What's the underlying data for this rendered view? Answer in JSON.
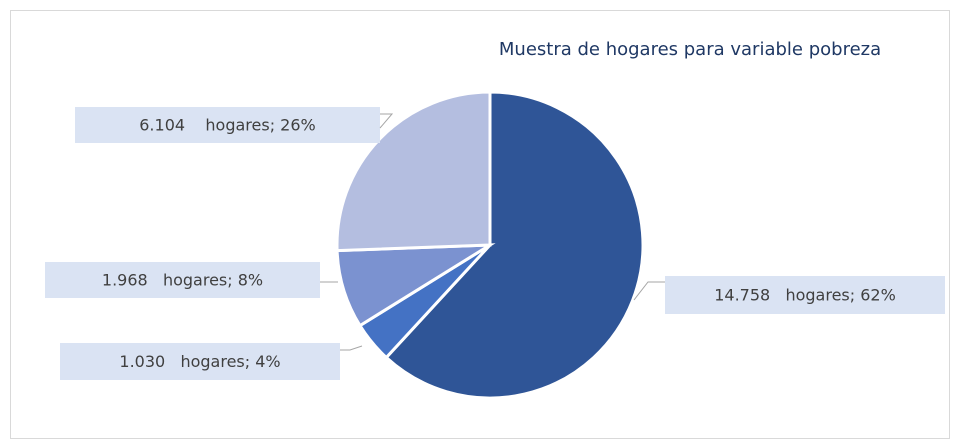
{
  "chart_data": {
    "type": "pie",
    "title": "Muestra de hogares para variable pobreza",
    "values": [
      14758,
      1030,
      1968,
      6104
    ],
    "value_labels": [
      "14.758   hogares; 62%",
      "1.030   hogares; 4%",
      "1.968   hogares; 8%",
      "6.104    hogares; 26%"
    ],
    "colors": [
      "#2f5597",
      "#4472c4",
      "#7b92d0",
      "#b4bee0"
    ]
  }
}
